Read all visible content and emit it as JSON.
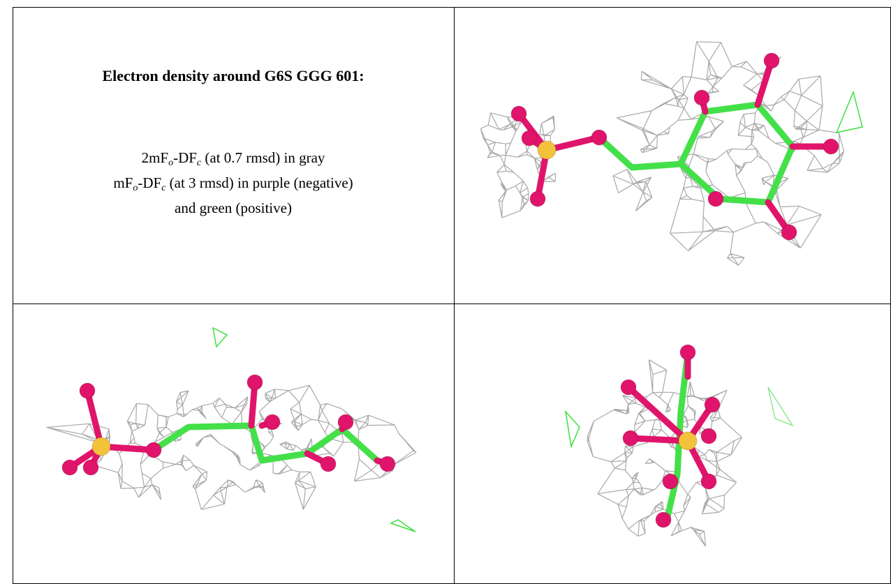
{
  "header": {
    "title": "Electron density around G6S GGG 601:"
  },
  "caption": {
    "lines": [
      [
        {
          "text": "2mF"
        },
        {
          "text": "o",
          "sub": true
        },
        {
          "text": "-DF"
        },
        {
          "text": "c",
          "sub": true
        },
        {
          "text": " (at 0.7 rmsd) in gray"
        }
      ],
      [
        {
          "text": "mF"
        },
        {
          "text": "o",
          "sub": true
        },
        {
          "text": "-DF"
        },
        {
          "text": "c",
          "sub": true
        },
        {
          "text": " (at 3 rmsd) in purple (negative)"
        }
      ],
      [
        {
          "text": "and green (positive)"
        }
      ]
    ]
  }
}
